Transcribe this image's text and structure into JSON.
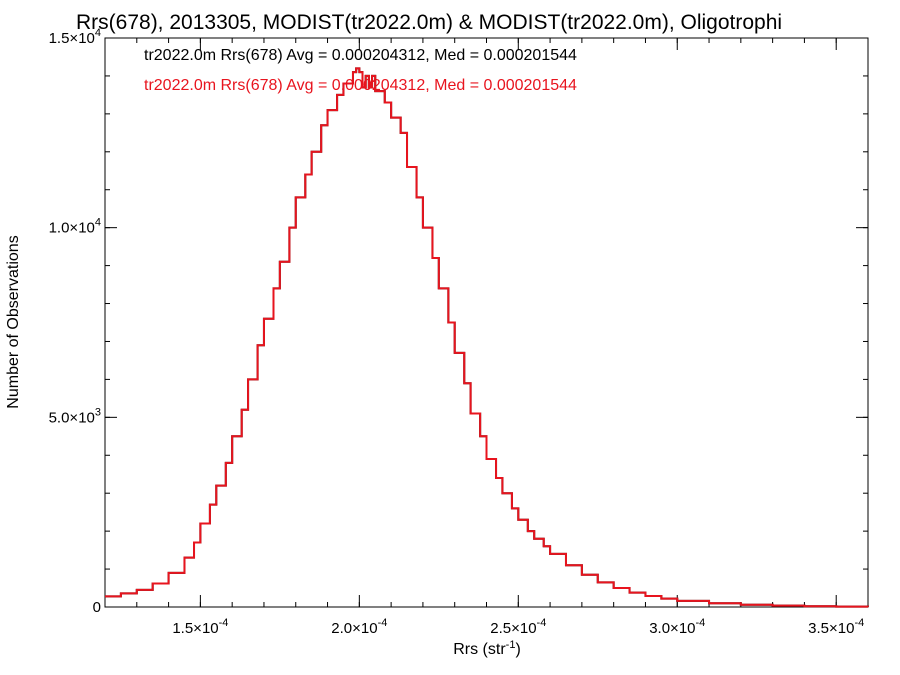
{
  "chart_data": {
    "type": "histogram",
    "title": "Rrs(678), 2013305, MODIST(tr2022.0m) & MODIST(tr2022.0m), Oligotrophi",
    "xlabel": {
      "base": "Rrs (str",
      "sup": "-1",
      "end": ")"
    },
    "ylabel": "Number of Observations",
    "xlim": [
      0.00012,
      0.00036
    ],
    "ylim": [
      0,
      15000
    ],
    "grid": false,
    "legend_position": "top-left",
    "x_ticks": [
      {
        "value": 0.00015,
        "mant": "1.5×10",
        "exp": "-4"
      },
      {
        "value": 0.0002,
        "mant": "2.0×10",
        "exp": "-4"
      },
      {
        "value": 0.00025,
        "mant": "2.5×10",
        "exp": "-4"
      },
      {
        "value": 0.0003,
        "mant": "3.0×10",
        "exp": "-4"
      },
      {
        "value": 0.00035,
        "mant": "3.5×10",
        "exp": "-4"
      }
    ],
    "y_ticks": [
      {
        "value": 0,
        "mant": "0",
        "exp": ""
      },
      {
        "value": 5000,
        "mant": "5.0×10",
        "exp": "3"
      },
      {
        "value": 10000,
        "mant": "1.0×10",
        "exp": "4"
      },
      {
        "value": 15000,
        "mant": "1.5×10",
        "exp": "4"
      }
    ],
    "annotations": [
      {
        "text": "tr2022.0m Rrs(678) Avg = 0.000204312, Med = 0.000201544",
        "color": "#000000"
      },
      {
        "text": "tr2022.0m Rrs(678) Avg = 0.000204312, Med = 0.000201544",
        "color": "#e8141e"
      }
    ],
    "series": [
      {
        "color_primary": "#e8141e",
        "color_under": "#000000",
        "points": [
          [
            0.00012,
            280
          ],
          [
            0.000125,
            360
          ],
          [
            0.00013,
            450
          ],
          [
            0.000135,
            620
          ],
          [
            0.00014,
            900
          ],
          [
            0.000145,
            1300
          ],
          [
            0.000148,
            1700
          ],
          [
            0.00015,
            2200
          ],
          [
            0.000153,
            2700
          ],
          [
            0.000155,
            3200
          ],
          [
            0.000158,
            3800
          ],
          [
            0.00016,
            4500
          ],
          [
            0.000163,
            5200
          ],
          [
            0.000165,
            6000
          ],
          [
            0.000168,
            6900
          ],
          [
            0.00017,
            7600
          ],
          [
            0.000173,
            8400
          ],
          [
            0.000175,
            9100
          ],
          [
            0.000178,
            10000
          ],
          [
            0.00018,
            10800
          ],
          [
            0.000183,
            11400
          ],
          [
            0.000185,
            12000
          ],
          [
            0.000188,
            12700
          ],
          [
            0.00019,
            13100
          ],
          [
            0.000193,
            13500
          ],
          [
            0.000195,
            13800
          ],
          [
            0.000198,
            14100
          ],
          [
            0.000199,
            14200
          ],
          [
            0.0002,
            14100
          ],
          [
            0.000201,
            13700
          ],
          [
            0.000202,
            14000
          ],
          [
            0.000203,
            13700
          ],
          [
            0.000204,
            14000
          ],
          [
            0.000205,
            13600
          ],
          [
            0.000208,
            13300
          ],
          [
            0.00021,
            12900
          ],
          [
            0.000213,
            12500
          ],
          [
            0.000215,
            11600
          ],
          [
            0.000218,
            10800
          ],
          [
            0.00022,
            10000
          ],
          [
            0.000223,
            9200
          ],
          [
            0.000225,
            8400
          ],
          [
            0.000228,
            7500
          ],
          [
            0.00023,
            6700
          ],
          [
            0.000233,
            5900
          ],
          [
            0.000235,
            5100
          ],
          [
            0.000238,
            4500
          ],
          [
            0.00024,
            3900
          ],
          [
            0.000243,
            3400
          ],
          [
            0.000245,
            3000
          ],
          [
            0.000248,
            2600
          ],
          [
            0.00025,
            2300
          ],
          [
            0.000253,
            2000
          ],
          [
            0.000255,
            1800
          ],
          [
            0.000258,
            1600
          ],
          [
            0.00026,
            1400
          ],
          [
            0.000265,
            1100
          ],
          [
            0.00027,
            850
          ],
          [
            0.000275,
            650
          ],
          [
            0.00028,
            500
          ],
          [
            0.000285,
            380
          ],
          [
            0.00029,
            290
          ],
          [
            0.000295,
            220
          ],
          [
            0.0003,
            160
          ],
          [
            0.00031,
            100
          ],
          [
            0.00032,
            60
          ],
          [
            0.00033,
            35
          ],
          [
            0.00034,
            20
          ],
          [
            0.00035,
            10
          ],
          [
            0.00036,
            5
          ]
        ]
      }
    ]
  }
}
